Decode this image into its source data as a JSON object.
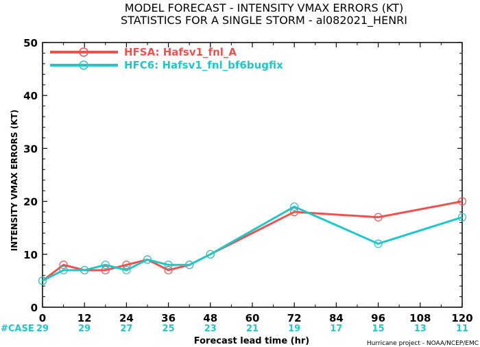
{
  "chart_data": {
    "type": "line",
    "title": "MODEL FORECAST - INTENSITY VMAX ERRORS (KT)",
    "subtitle": "STATISTICS FOR A SINGLE STORM - al082021_HENRI",
    "xlabel": "Forecast lead time (hr)",
    "ylabel": "INTENSITY VMAX ERRORS (KT)",
    "xlim": [
      0,
      120
    ],
    "ylim": [
      0,
      50
    ],
    "xticks": [
      0,
      12,
      24,
      36,
      48,
      60,
      72,
      84,
      96,
      108,
      120
    ],
    "yticks": [
      0,
      10,
      20,
      30,
      40,
      50
    ],
    "grid": false,
    "legend_position": "top-left",
    "series": [
      {
        "name": "HFSA: Hafsv1_fnl_A",
        "color": "#f0514f",
        "points": [
          [
            0,
            5
          ],
          [
            6,
            8
          ],
          [
            12,
            7
          ],
          [
            18,
            7
          ],
          [
            24,
            8
          ],
          [
            30,
            9
          ],
          [
            36,
            7
          ],
          [
            42,
            8
          ],
          [
            48,
            10
          ],
          [
            72,
            18
          ],
          [
            96,
            17
          ],
          [
            120,
            20
          ]
        ]
      },
      {
        "name": "HFC6: Hafsv1_fnl_bf6bugfix",
        "color": "#1ec8c8",
        "points": [
          [
            0,
            5
          ],
          [
            6,
            7
          ],
          [
            12,
            7
          ],
          [
            18,
            8
          ],
          [
            24,
            7
          ],
          [
            30,
            9
          ],
          [
            36,
            8
          ],
          [
            42,
            8
          ],
          [
            48,
            10
          ],
          [
            72,
            19
          ],
          [
            96,
            12
          ],
          [
            120,
            17
          ]
        ]
      }
    ],
    "cases": {
      "label": "#CASE",
      "color": "#1ec8c8",
      "items": [
        {
          "hour": 0,
          "count": "29"
        },
        {
          "hour": 12,
          "count": "29"
        },
        {
          "hour": 24,
          "count": "27"
        },
        {
          "hour": 36,
          "count": "25"
        },
        {
          "hour": 48,
          "count": "23"
        },
        {
          "hour": 60,
          "count": "21"
        },
        {
          "hour": 72,
          "count": "19"
        },
        {
          "hour": 84,
          "count": "17"
        },
        {
          "hour": 96,
          "count": "15"
        },
        {
          "hour": 108,
          "count": "13"
        },
        {
          "hour": 120,
          "count": "11"
        }
      ]
    },
    "credit": "Hurricane project - NOAA/NCEP/EMC"
  }
}
